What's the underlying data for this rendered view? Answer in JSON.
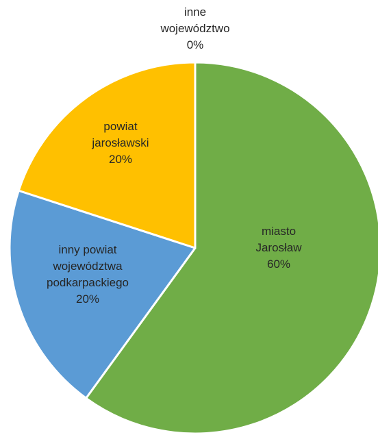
{
  "chart_data": {
    "type": "pie",
    "title": "",
    "start_angle_deg": 0,
    "direction": "clockwise",
    "slices": [
      {
        "label_lines": [
          "miasto",
          "Jarosław"
        ],
        "percent_label": "60%",
        "value": 60,
        "color": "#70AD47"
      },
      {
        "label_lines": [
          "inny powiat",
          "województwa",
          "podkarpackiego"
        ],
        "percent_label": "20%",
        "value": 20,
        "color": "#5B9BD5"
      },
      {
        "label_lines": [
          "powiat",
          "jarosławski"
        ],
        "percent_label": "20%",
        "value": 20,
        "color": "#FFC000"
      },
      {
        "label_lines": [
          "inne",
          "województwo"
        ],
        "percent_label": "0%",
        "value": 0,
        "color": "#A5A5A5"
      }
    ],
    "legend": "none"
  }
}
